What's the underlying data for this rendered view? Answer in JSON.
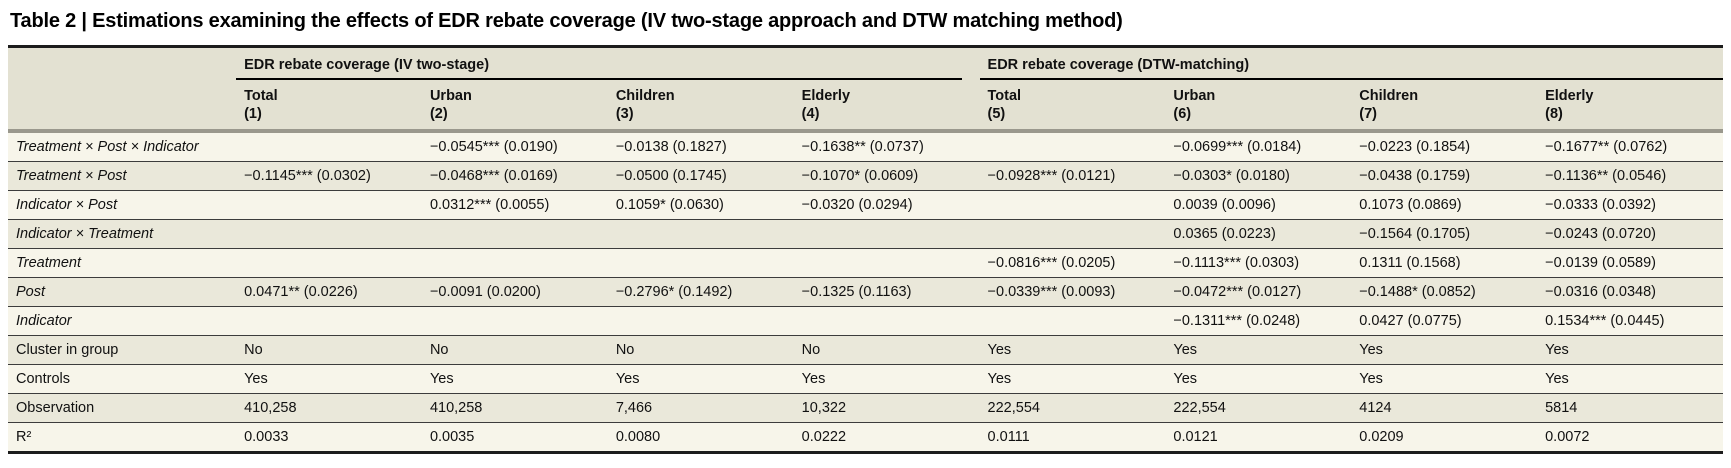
{
  "title": "Table 2 | Estimations examining the effects of EDR rebate coverage (IV two-stage approach and DTW matching method)",
  "table": {
    "groups": [
      {
        "label": "EDR rebate coverage (IV two-stage)"
      },
      {
        "label": "EDR rebate coverage (DTW-matching)"
      }
    ],
    "columns": [
      {
        "name": "Total",
        "number": "(1)"
      },
      {
        "name": "Urban",
        "number": "(2)"
      },
      {
        "name": "Children",
        "number": "(3)"
      },
      {
        "name": "Elderly",
        "number": "(4)"
      },
      {
        "name": "Total",
        "number": "(5)"
      },
      {
        "name": "Urban",
        "number": "(6)"
      },
      {
        "name": "Children",
        "number": "(7)"
      },
      {
        "name": "Elderly",
        "number": "(8)"
      }
    ],
    "rows": [
      {
        "label": "Treatment × Post × Indicator",
        "italic": true,
        "values": [
          "",
          "−0.0545*** (0.0190)",
          "−0.0138 (0.1827)",
          "−0.1638** (0.0737)",
          "",
          "−0.0699*** (0.0184)",
          "−0.0223 (0.1854)",
          "−0.1677** (0.0762)"
        ]
      },
      {
        "label": "Treatment × Post",
        "italic": true,
        "values": [
          "−0.1145*** (0.0302)",
          "−0.0468*** (0.0169)",
          "−0.0500 (0.1745)",
          "−0.1070* (0.0609)",
          "−0.0928*** (0.0121)",
          "−0.0303* (0.0180)",
          "−0.0438 (0.1759)",
          "−0.1136** (0.0546)"
        ]
      },
      {
        "label": "Indicator × Post",
        "italic": true,
        "values": [
          "",
          "0.0312*** (0.0055)",
          "0.1059* (0.0630)",
          "−0.0320 (0.0294)",
          "",
          "0.0039 (0.0096)",
          "0.1073 (0.0869)",
          "−0.0333 (0.0392)"
        ]
      },
      {
        "label": "Indicator × Treatment",
        "italic": true,
        "values": [
          "",
          "",
          "",
          "",
          "",
          "0.0365 (0.0223)",
          "−0.1564 (0.1705)",
          "−0.0243 (0.0720)"
        ]
      },
      {
        "label": "Treatment",
        "italic": true,
        "values": [
          "",
          "",
          "",
          "",
          "−0.0816*** (0.0205)",
          "−0.1113*** (0.0303)",
          "0.1311 (0.1568)",
          "−0.0139 (0.0589)"
        ]
      },
      {
        "label": "Post",
        "italic": true,
        "values": [
          "0.0471** (0.0226)",
          "−0.0091 (0.0200)",
          "−0.2796* (0.1492)",
          "−0.1325 (0.1163)",
          "−0.0339*** (0.0093)",
          "−0.0472*** (0.0127)",
          "−0.1488* (0.0852)",
          "−0.0316 (0.0348)"
        ]
      },
      {
        "label": "Indicator",
        "italic": true,
        "values": [
          "",
          "",
          "",
          "",
          "",
          "−0.1311*** (0.0248)",
          "0.0427 (0.0775)",
          "0.1534*** (0.0445)"
        ]
      },
      {
        "label": "Cluster in group",
        "italic": false,
        "values": [
          "No",
          "No",
          "No",
          "No",
          "Yes",
          "Yes",
          "Yes",
          "Yes"
        ]
      },
      {
        "label": "Controls",
        "italic": false,
        "values": [
          "Yes",
          "Yes",
          "Yes",
          "Yes",
          "Yes",
          "Yes",
          "Yes",
          "Yes"
        ]
      },
      {
        "label": "Observation",
        "italic": false,
        "values": [
          "410,258",
          "410,258",
          "7,466",
          "10,322",
          "222,554",
          "222,554",
          "4124",
          "5814"
        ]
      },
      {
        "label": "R²",
        "italic": false,
        "values": [
          "0.0033",
          "0.0035",
          "0.0080",
          "0.0222",
          "0.0111",
          "0.0121",
          "0.0209",
          "0.0072"
        ]
      }
    ]
  }
}
